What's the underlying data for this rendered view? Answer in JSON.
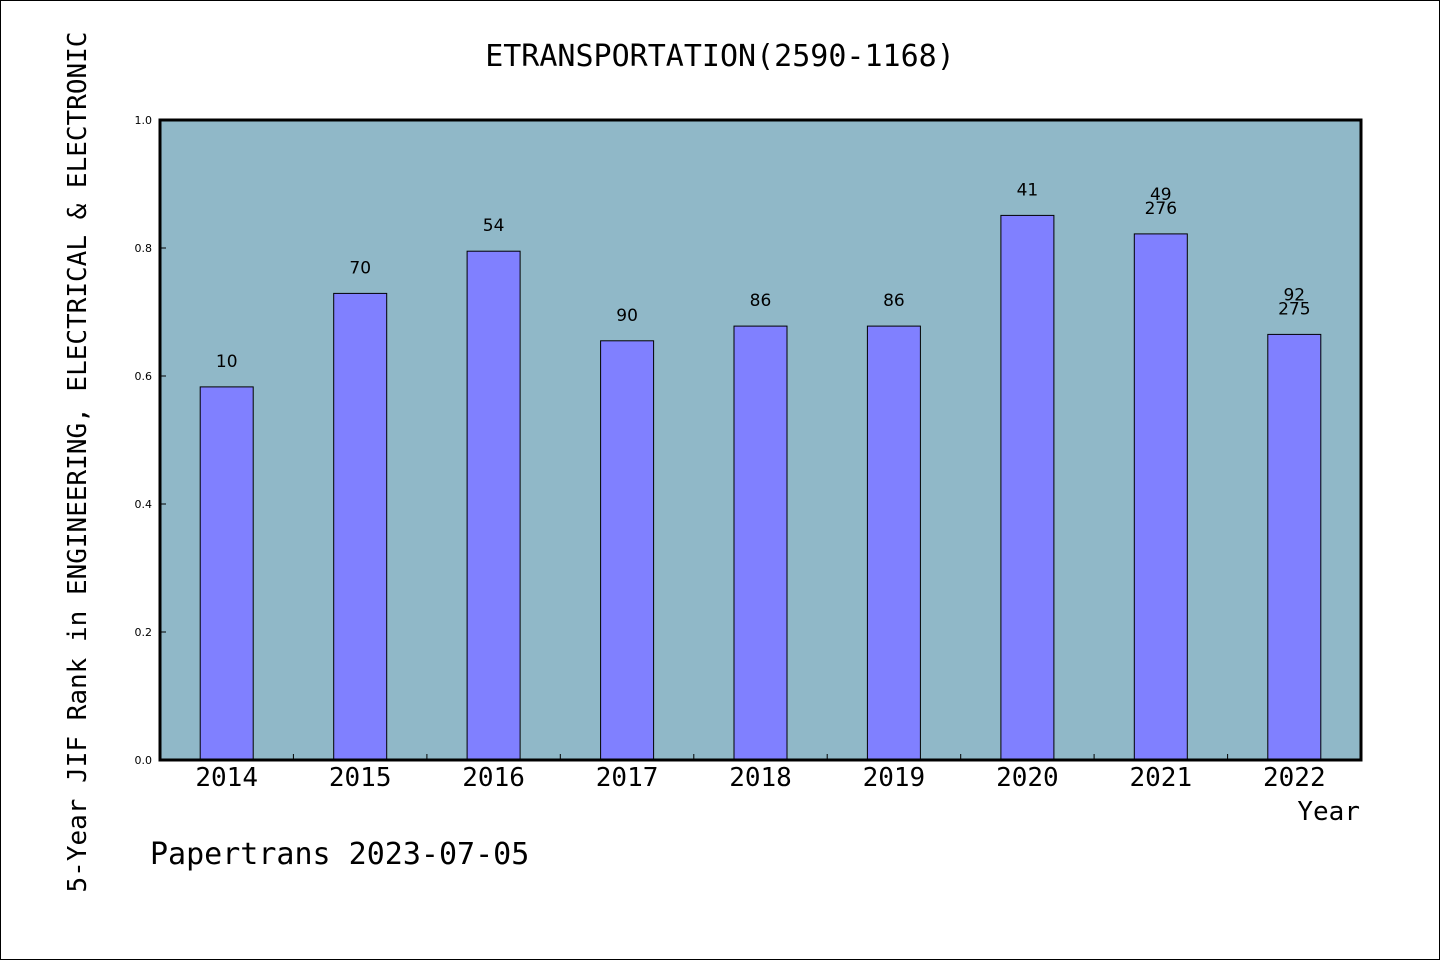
{
  "chart_data": {
    "type": "bar",
    "title": "ETRANSPORTATION(2590-1168)",
    "xlabel": "Year",
    "ylabel": "5-Year JIF Rank in ENGINEERING, ELECTRICAL & ELECTRONIC",
    "footer": "Papertrans 2023-07-05",
    "categories": [
      "2014",
      "2015",
      "2016",
      "2017",
      "2018",
      "2019",
      "2020",
      "2021",
      "2022"
    ],
    "values": [
      0.583,
      0.729,
      0.795,
      0.655,
      0.678,
      0.678,
      0.851,
      0.822,
      0.665
    ],
    "bar_labels": [
      [
        "10"
      ],
      [
        "70"
      ],
      [
        "54"
      ],
      [
        "90"
      ],
      [
        "86"
      ],
      [
        "86"
      ],
      [
        "41"
      ],
      [
        "49",
        "276"
      ],
      [
        "92",
        "275"
      ]
    ],
    "ylim": [
      0,
      1.0
    ],
    "yticks": [
      "0.0",
      "0.2",
      "0.4",
      "0.6",
      "0.8",
      "1.0"
    ],
    "grid": false,
    "legend": "none",
    "colors": {
      "bar": "#8080ff",
      "plot_background": "#90b8c8",
      "axes": "#000000"
    }
  }
}
